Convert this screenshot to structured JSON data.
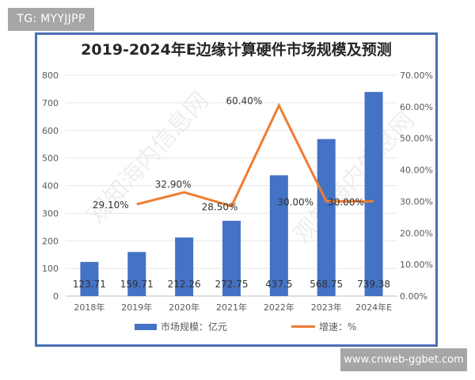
{
  "overlay": {
    "top_left_tag": "TG: MYYJJPP",
    "bottom_right_tag": "www.cnweb-ggbet.com",
    "watermark": "观知海内信息网"
  },
  "chart_data": {
    "type": "bar+line",
    "title": "2019-2024年E边缘计算硬件市场规模及预测",
    "categories": [
      "2018年",
      "2019年",
      "2020年",
      "2021年",
      "2022年",
      "2023年",
      "2024年E"
    ],
    "series": [
      {
        "name": "市场规模：亿元",
        "type": "bar",
        "axis": "left",
        "color": "#4472c4",
        "values": [
          123.71,
          159.71,
          212.26,
          272.75,
          437.5,
          568.75,
          739.38
        ],
        "labels": [
          "123.71",
          "159.71",
          "212.26",
          "272.75",
          "437.5",
          "568.75",
          "739.38"
        ]
      },
      {
        "name": "增速：%",
        "type": "line",
        "axis": "right",
        "color": "#ed7d31",
        "values": [
          null,
          29.1,
          32.9,
          28.5,
          60.4,
          30.0,
          30.0
        ],
        "labels": [
          "",
          "29.10%",
          "32.90%",
          "28.50%",
          "60.40%",
          "30.00%",
          "30.00%"
        ]
      }
    ],
    "left_axis": {
      "ylim": [
        0,
        800
      ],
      "ticks": [
        "0",
        "100",
        "200",
        "300",
        "400",
        "500",
        "600",
        "700",
        "800"
      ]
    },
    "right_axis": {
      "ylim": [
        0,
        70
      ],
      "ticks": [
        "0.00%",
        "10.00%",
        "20.00%",
        "30.00%",
        "40.00%",
        "50.00%",
        "60.00%",
        "70.00%"
      ]
    },
    "grid": true,
    "legend_position": "bottom",
    "xlabel": "",
    "ylabel": ""
  }
}
